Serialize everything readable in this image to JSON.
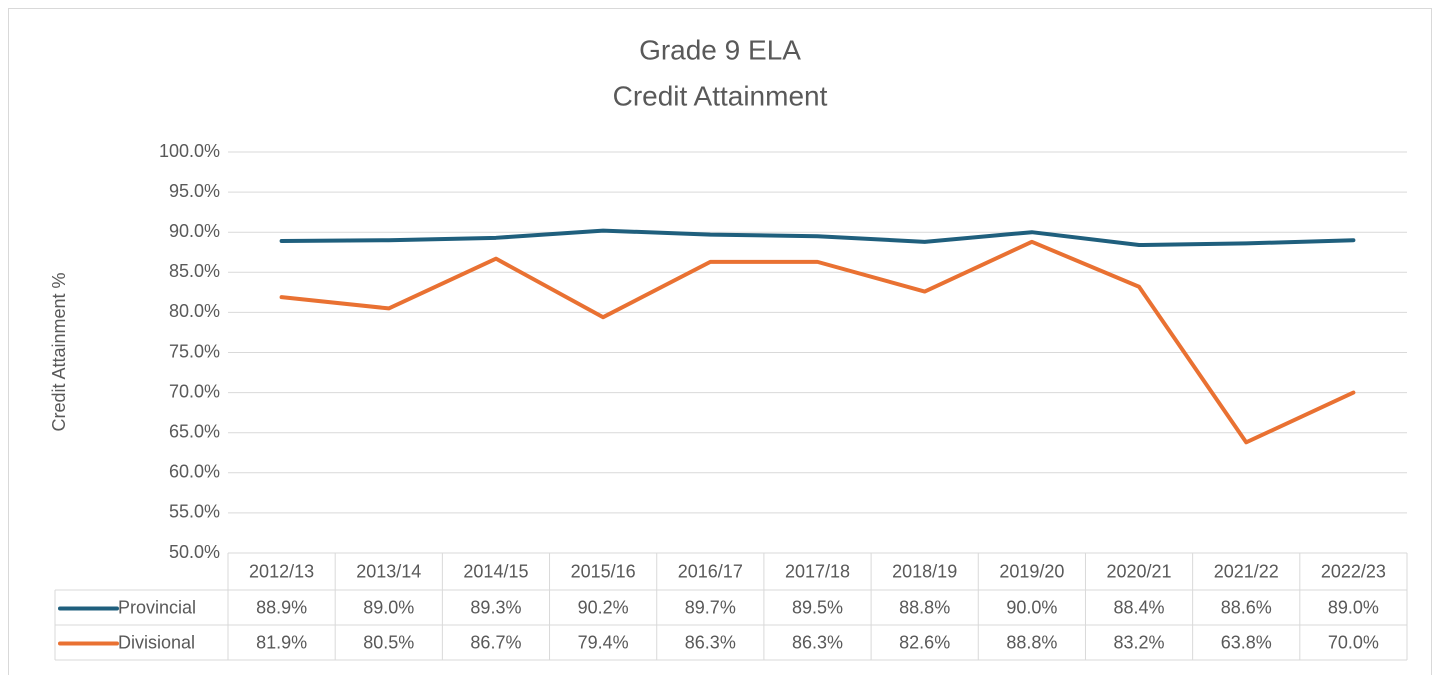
{
  "chart_data": {
    "type": "line",
    "title": "Grade 9 ELA",
    "subtitle": "Credit Attainment",
    "y_label": "Credit Attainment %",
    "categories": [
      "2012/13",
      "2013/14",
      "2014/15",
      "2015/16",
      "2016/17",
      "2017/18",
      "2018/19",
      "2019/20",
      "2020/21",
      "2021/22",
      "2022/23"
    ],
    "series": [
      {
        "name": "Provincial",
        "color": "#1f5f7d",
        "values": [
          88.9,
          89.0,
          89.3,
          90.2,
          89.7,
          89.5,
          88.8,
          90.0,
          88.4,
          88.6,
          89.0
        ],
        "value_labels": [
          "88.9%",
          "89.0%",
          "89.3%",
          "90.2%",
          "89.7%",
          "89.5%",
          "88.8%",
          "90.0%",
          "88.4%",
          "88.6%",
          "89.0%"
        ]
      },
      {
        "name": "Divisional",
        "color": "#e97132",
        "values": [
          81.9,
          80.5,
          86.7,
          79.4,
          86.3,
          86.3,
          82.6,
          88.8,
          83.2,
          63.8,
          70.0
        ],
        "value_labels": [
          "81.9%",
          "80.5%",
          "86.7%",
          "79.4%",
          "86.3%",
          "86.3%",
          "82.6%",
          "88.8%",
          "83.2%",
          "63.8%",
          "70.0%"
        ]
      }
    ],
    "ylim": [
      50,
      100
    ],
    "yticks": [
      {
        "value": 50,
        "label": "50.0%"
      },
      {
        "value": 55,
        "label": "55.0%"
      },
      {
        "value": 60,
        "label": "60.0%"
      },
      {
        "value": 65,
        "label": "65.0%"
      },
      {
        "value": 70,
        "label": "70.0%"
      },
      {
        "value": 75,
        "label": "75.0%"
      },
      {
        "value": 80,
        "label": "80.0%"
      },
      {
        "value": 85,
        "label": "85.0%"
      },
      {
        "value": 90,
        "label": "90.0%"
      },
      {
        "value": 95,
        "label": "95.0%"
      },
      {
        "value": 100,
        "label": "100.0%"
      }
    ],
    "grid": true
  }
}
